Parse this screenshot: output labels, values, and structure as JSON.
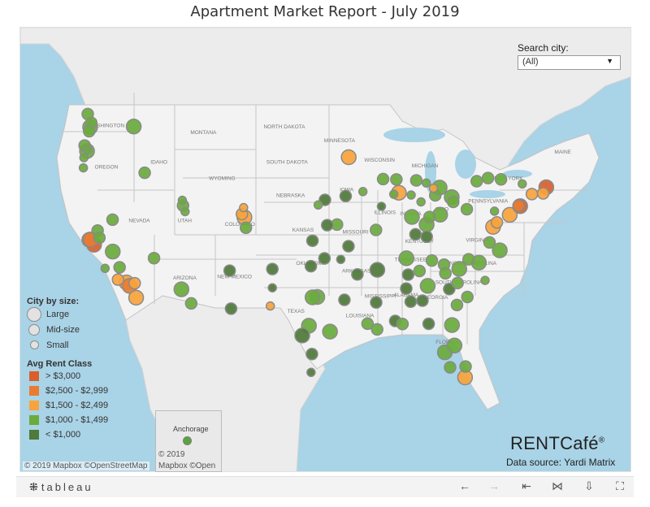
{
  "title": "Apartment Market Report - July 2019",
  "search": {
    "label": "Search city:",
    "value": "(All)"
  },
  "legend": {
    "size_title": "City by size:",
    "sizes": [
      {
        "label": "Large",
        "icon": "large-circle-icon"
      },
      {
        "label": "Mid-size",
        "icon": "mid-circle-icon"
      },
      {
        "label": "Small",
        "icon": "small-circle-icon"
      }
    ],
    "rent_title": "Avg Rent Class",
    "classes": [
      {
        "label": "> $3,000",
        "color": "#d95f2b"
      },
      {
        "label": "$2,500 - $2,999",
        "color": "#e97c32"
      },
      {
        "label": "$1,500 - $2,499",
        "color": "#f9a33c"
      },
      {
        "label": "$1,000 - $1,499",
        "color": "#6aab3c"
      },
      {
        "label": "< $1,000",
        "color": "#4e7a3a"
      }
    ]
  },
  "colors": {
    "water": "#a9d3e6",
    "land": "#f1f1f1",
    "border": "#c9c9c9",
    "marker_stroke": "#8a8a8a"
  },
  "map_labels": {
    "states": [
      "WASHINGTON",
      "OREGON",
      "IDAHO",
      "MONTANA",
      "WYOMING",
      "NORTH DAKOTA",
      "SOUTH DAKOTA",
      "NEBRASKA",
      "NEVADA",
      "UTAH",
      "COLORADO",
      "KANSAS",
      "ARIZONA",
      "NEW MEXICO",
      "TEXAS",
      "OKLAHOMA",
      "MINNESOTA",
      "IOWA",
      "MISSOURI",
      "ARKANSAS",
      "LOUISIANA",
      "MISSISSIPPI",
      "ALABAMA",
      "GEORGIA",
      "ILLINOIS",
      "WISCONSIN",
      "MICHIGAN",
      "INDIANA",
      "OHIO",
      "KENTUCKY",
      "TENNESSEE",
      "PENNSYLVANIA",
      "VIRGINIA",
      "NORTH CAROLINA",
      "SOUTH CAROLINA",
      "NEW YORK",
      "MAINE",
      "FLORIDA"
    ],
    "inset": "Anchorage"
  },
  "branding": {
    "name": "RENTCafé",
    "registered": "®",
    "data_source": "Data source: Yardi Matrix"
  },
  "credits": {
    "main": "© 2019 Mapbox ©OpenStreetMap",
    "inset_line1": "© 2019",
    "inset_line2": "Mapbox ©Open"
  },
  "toolbar": {
    "logo": "tableau",
    "buttons": [
      {
        "name": "undo-icon",
        "glyph": "←",
        "enabled": true
      },
      {
        "name": "redo-icon",
        "glyph": "→",
        "enabled": false
      },
      {
        "name": "revert-icon",
        "glyph": "⇤",
        "enabled": true
      },
      {
        "name": "share-icon",
        "glyph": "⋈",
        "enabled": true
      },
      {
        "name": "download-icon",
        "glyph": "⇩",
        "enabled": true
      },
      {
        "name": "fullscreen-icon",
        "glyph": "⛶",
        "enabled": true
      }
    ]
  },
  "markers": [
    {
      "c": 3,
      "s": "L",
      "lon": -122.33,
      "lat": 47.61
    },
    {
      "c": 3,
      "s": "M",
      "lon": -122.2,
      "lat": 47.98
    },
    {
      "c": 3,
      "s": "M",
      "lon": -122.44,
      "lat": 47.25
    },
    {
      "c": 3,
      "s": "L",
      "lon": -122.68,
      "lat": 45.52
    },
    {
      "c": 3,
      "s": "S",
      "lon": -123.09,
      "lat": 44.05
    },
    {
      "c": 3,
      "s": "S",
      "lon": -123.03,
      "lat": 44.94
    },
    {
      "c": 3,
      "s": "M",
      "lon": -122.95,
      "lat": 46.0
    },
    {
      "c": 3,
      "s": "S",
      "lon": -122.6,
      "lat": 45.64
    },
    {
      "c": 3,
      "s": "M",
      "lon": -122.6,
      "lat": 48.75
    },
    {
      "c": 3,
      "s": "L",
      "lon": -117.43,
      "lat": 47.66
    },
    {
      "c": 3,
      "s": "M",
      "lon": -116.2,
      "lat": 43.62
    },
    {
      "c": 3,
      "s": "M",
      "lon": -111.89,
      "lat": 40.76
    },
    {
      "c": 3,
      "s": "S",
      "lon": -111.66,
      "lat": 40.23
    },
    {
      "c": 3,
      "s": "S",
      "lon": -111.97,
      "lat": 41.22
    },
    {
      "c": 3,
      "s": "M",
      "lon": -119.81,
      "lat": 39.53
    },
    {
      "c": 0,
      "s": "L",
      "lon": -122.42,
      "lat": 37.77
    },
    {
      "c": 0,
      "s": "L",
      "lon": -121.89,
      "lat": 37.34
    },
    {
      "c": 1,
      "s": "L",
      "lon": -122.27,
      "lat": 37.8
    },
    {
      "c": 3,
      "s": "M",
      "lon": -121.49,
      "lat": 38.58
    },
    {
      "c": 3,
      "s": "M",
      "lon": -121.29,
      "lat": 37.95
    },
    {
      "c": 3,
      "s": "L",
      "lon": -119.79,
      "lat": 36.74
    },
    {
      "c": 3,
      "s": "M",
      "lon": -119.02,
      "lat": 35.37
    },
    {
      "c": 3,
      "s": "S",
      "lon": -120.65,
      "lat": 35.28
    },
    {
      "c": 2,
      "s": "L",
      "lon": -118.24,
      "lat": 34.05
    },
    {
      "c": 1,
      "s": "L",
      "lon": -117.9,
      "lat": 33.75
    },
    {
      "c": 2,
      "s": "L",
      "lon": -117.16,
      "lat": 32.72
    },
    {
      "c": 2,
      "s": "M",
      "lon": -117.32,
      "lat": 33.98
    },
    {
      "c": 2,
      "s": "M",
      "lon": -119.2,
      "lat": 34.3
    },
    {
      "c": 3,
      "s": "M",
      "lon": -115.15,
      "lat": 36.17
    },
    {
      "c": 3,
      "s": "L",
      "lon": -112.07,
      "lat": 33.45
    },
    {
      "c": 3,
      "s": "M",
      "lon": -110.97,
      "lat": 32.22
    },
    {
      "c": 4,
      "s": "M",
      "lon": -106.65,
      "lat": 35.08
    },
    {
      "c": 4,
      "s": "M",
      "lon": -106.49,
      "lat": 31.76
    },
    {
      "c": 2,
      "s": "L",
      "lon": -104.99,
      "lat": 39.74
    },
    {
      "c": 2,
      "s": "M",
      "lon": -105.27,
      "lat": 40.02
    },
    {
      "c": 3,
      "s": "M",
      "lon": -104.82,
      "lat": 38.83
    },
    {
      "c": 2,
      "s": "S",
      "lon": -105.08,
      "lat": 40.58
    },
    {
      "c": 4,
      "s": "M",
      "lon": -101.85,
      "lat": 35.22
    },
    {
      "c": 4,
      "s": "S",
      "lon": -101.85,
      "lat": 33.58
    },
    {
      "c": 2,
      "s": "S",
      "lon": -102.08,
      "lat": 31.99
    },
    {
      "c": 3,
      "s": "L",
      "lon": -96.8,
      "lat": 32.78
    },
    {
      "c": 3,
      "s": "L",
      "lon": -97.33,
      "lat": 32.75
    },
    {
      "c": 3,
      "s": "L",
      "lon": -95.37,
      "lat": 29.76
    },
    {
      "c": 3,
      "s": "L",
      "lon": -97.74,
      "lat": 30.27
    },
    {
      "c": 4,
      "s": "L",
      "lon": -98.49,
      "lat": 29.42
    },
    {
      "c": 4,
      "s": "M",
      "lon": -97.4,
      "lat": 27.8
    },
    {
      "c": 4,
      "s": "S",
      "lon": -97.5,
      "lat": 26.2
    },
    {
      "c": 4,
      "s": "M",
      "lon": -97.52,
      "lat": 35.47
    },
    {
      "c": 4,
      "s": "M",
      "lon": -95.99,
      "lat": 36.15
    },
    {
      "c": 4,
      "s": "M",
      "lon": -97.34,
      "lat": 37.69
    },
    {
      "c": 3,
      "s": "M",
      "lon": -94.58,
      "lat": 39.1
    },
    {
      "c": 4,
      "s": "M",
      "lon": -95.68,
      "lat": 39.05
    },
    {
      "c": 4,
      "s": "M",
      "lon": -95.94,
      "lat": 41.26
    },
    {
      "c": 3,
      "s": "S",
      "lon": -96.7,
      "lat": 40.81
    },
    {
      "c": 4,
      "s": "M",
      "lon": -93.61,
      "lat": 41.59
    },
    {
      "c": 3,
      "s": "S",
      "lon": -91.67,
      "lat": 41.98
    },
    {
      "c": 2,
      "s": "L",
      "lon": -93.27,
      "lat": 44.98
    },
    {
      "c": 3,
      "s": "M",
      "lon": -90.2,
      "lat": 38.63
    },
    {
      "c": 4,
      "s": "M",
      "lon": -93.29,
      "lat": 37.21
    },
    {
      "c": 4,
      "s": "M",
      "lon": -92.29,
      "lat": 34.75
    },
    {
      "c": 4,
      "s": "S",
      "lon": -94.16,
      "lat": 36.06
    },
    {
      "c": 3,
      "s": "M",
      "lon": -90.07,
      "lat": 29.95
    },
    {
      "c": 3,
      "s": "M",
      "lon": -91.15,
      "lat": 30.45
    },
    {
      "c": 4,
      "s": "M",
      "lon": -90.18,
      "lat": 32.3
    },
    {
      "c": 4,
      "s": "M",
      "lon": -93.75,
      "lat": 32.53
    },
    {
      "c": 4,
      "s": "M",
      "lon": -88.04,
      "lat": 30.69
    },
    {
      "c": 4,
      "s": "M",
      "lon": -86.8,
      "lat": 33.52
    },
    {
      "c": 4,
      "s": "M",
      "lon": -86.3,
      "lat": 32.37
    },
    {
      "c": 4,
      "s": "M",
      "lon": -86.59,
      "lat": 34.73
    },
    {
      "c": 3,
      "s": "L",
      "lon": -86.78,
      "lat": 36.16
    },
    {
      "c": 4,
      "s": "L",
      "lon": -90.05,
      "lat": 35.15
    },
    {
      "c": 3,
      "s": "M",
      "lon": -85.31,
      "lat": 35.05
    },
    {
      "c": 3,
      "s": "M",
      "lon": -83.92,
      "lat": 35.96
    },
    {
      "c": 3,
      "s": "L",
      "lon": -84.39,
      "lat": 33.75
    },
    {
      "c": 3,
      "s": "M",
      "lon": -81.1,
      "lat": 32.08
    },
    {
      "c": 4,
      "s": "M",
      "lon": -81.97,
      "lat": 33.47
    },
    {
      "c": 4,
      "s": "M",
      "lon": -84.98,
      "lat": 32.46
    },
    {
      "c": 3,
      "s": "L",
      "lon": -81.66,
      "lat": 30.33
    },
    {
      "c": 3,
      "s": "L",
      "lon": -82.46,
      "lat": 27.95
    },
    {
      "c": 3,
      "s": "L",
      "lon": -81.38,
      "lat": 28.54
    },
    {
      "c": 2,
      "s": "L",
      "lon": -80.19,
      "lat": 25.76
    },
    {
      "c": 3,
      "s": "M",
      "lon": -81.87,
      "lat": 26.64
    },
    {
      "c": 3,
      "s": "M",
      "lon": -80.13,
      "lat": 26.71
    },
    {
      "c": 4,
      "s": "M",
      "lon": -84.28,
      "lat": 30.44
    },
    {
      "c": 3,
      "s": "M",
      "lon": -87.22,
      "lat": 30.42
    },
    {
      "c": 3,
      "s": "L",
      "lon": -80.84,
      "lat": 35.23
    },
    {
      "c": 3,
      "s": "L",
      "lon": -78.64,
      "lat": 35.78
    },
    {
      "c": 3,
      "s": "M",
      "lon": -79.79,
      "lat": 36.07
    },
    {
      "c": 3,
      "s": "M",
      "lon": -82.55,
      "lat": 35.6
    },
    {
      "c": 3,
      "s": "M",
      "lon": -81.03,
      "lat": 34.0
    },
    {
      "c": 3,
      "s": "M",
      "lon": -79.93,
      "lat": 32.78
    },
    {
      "c": 3,
      "s": "M",
      "lon": -82.4,
      "lat": 34.85
    },
    {
      "c": 3,
      "s": "S",
      "lon": -77.94,
      "lat": 34.23
    },
    {
      "c": 3,
      "s": "L",
      "lon": -76.29,
      "lat": 36.85
    },
    {
      "c": 3,
      "s": "M",
      "lon": -77.44,
      "lat": 37.54
    },
    {
      "c": 2,
      "s": "L",
      "lon": -77.04,
      "lat": 38.9
    },
    {
      "c": 2,
      "s": "M",
      "lon": -76.61,
      "lat": 39.29
    },
    {
      "c": 2,
      "s": "L",
      "lon": -75.17,
      "lat": 39.95
    },
    {
      "c": 0,
      "s": "L",
      "lon": -74.0,
      "lat": 40.71
    },
    {
      "c": 1,
      "s": "M",
      "lon": -74.17,
      "lat": 40.74
    },
    {
      "c": 0,
      "s": "L",
      "lon": -71.06,
      "lat": 42.36
    },
    {
      "c": 2,
      "s": "M",
      "lon": -71.41,
      "lat": 41.82
    },
    {
      "c": 2,
      "s": "M",
      "lon": -72.68,
      "lat": 41.76
    },
    {
      "c": 3,
      "s": "M",
      "lon": -79.99,
      "lat": 40.44
    },
    {
      "c": 3,
      "s": "S",
      "lon": -76.88,
      "lat": 40.27
    },
    {
      "c": 3,
      "s": "M",
      "lon": -78.88,
      "lat": 42.89
    },
    {
      "c": 3,
      "s": "M",
      "lon": -77.61,
      "lat": 43.16
    },
    {
      "c": 3,
      "s": "M",
      "lon": -76.15,
      "lat": 43.05
    },
    {
      "c": 3,
      "s": "S",
      "lon": -73.76,
      "lat": 42.65
    },
    {
      "c": 3,
      "s": "L",
      "lon": -81.69,
      "lat": 41.5
    },
    {
      "c": 3,
      "s": "L",
      "lon": -82.99,
      "lat": 39.96
    },
    {
      "c": 3,
      "s": "L",
      "lon": -84.51,
      "lat": 39.1
    },
    {
      "c": 3,
      "s": "M",
      "lon": -84.19,
      "lat": 39.76
    },
    {
      "c": 3,
      "s": "M",
      "lon": -83.54,
      "lat": 41.65
    },
    {
      "c": 3,
      "s": "M",
      "lon": -81.52,
      "lat": 41.08
    },
    {
      "c": 3,
      "s": "L",
      "lon": -86.16,
      "lat": 39.77
    },
    {
      "c": 4,
      "s": "M",
      "lon": -85.76,
      "lat": 38.25
    },
    {
      "c": 4,
      "s": "M",
      "lon": -84.5,
      "lat": 38.04
    },
    {
      "c": 3,
      "s": "L",
      "lon": -83.05,
      "lat": 42.33
    },
    {
      "c": 3,
      "s": "M",
      "lon": -85.67,
      "lat": 42.96
    },
    {
      "c": 2,
      "s": "S",
      "lon": -83.74,
      "lat": 42.28
    },
    {
      "c": 3,
      "s": "S",
      "lon": -84.55,
      "lat": 42.73
    },
    {
      "c": 2,
      "s": "L",
      "lon": -87.63,
      "lat": 41.88
    },
    {
      "c": 3,
      "s": "M",
      "lon": -87.91,
      "lat": 43.04
    },
    {
      "c": 3,
      "s": "M",
      "lon": -89.4,
      "lat": 43.07
    },
    {
      "c": 3,
      "s": "S",
      "lon": -88.2,
      "lat": 41.75
    },
    {
      "c": 4,
      "s": "S",
      "lon": -89.59,
      "lat": 40.69
    },
    {
      "c": 3,
      "s": "S",
      "lon": -86.25,
      "lat": 41.68
    },
    {
      "c": 3,
      "s": "S",
      "lon": -85.14,
      "lat": 41.08
    }
  ]
}
